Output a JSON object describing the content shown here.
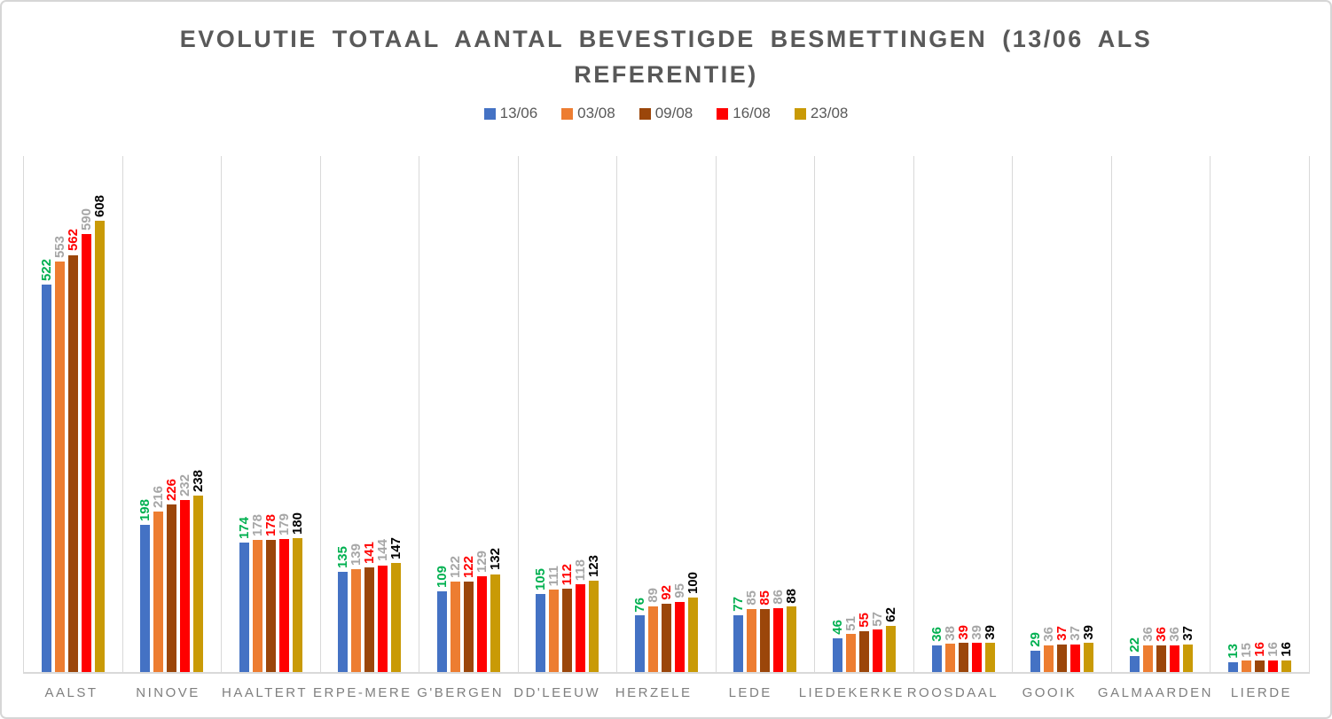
{
  "window": {
    "background": "#FFFFFF",
    "border_color": "#D6D6D6"
  },
  "title": {
    "line1": "EVOLUTIE TOTAAL AANTAL BEVESTIGDE BESMETTINGEN (13/06 ALS",
    "line2": "REFERENTIE)",
    "color": "#595959"
  },
  "chart_data": {
    "type": "bar",
    "title": "EVOLUTIE TOTAAL AANTAL BEVESTIGDE BESMETTINGEN (13/06 ALS REFERENTIE)",
    "xlabel": "",
    "ylabel": "",
    "ylim": [
      0,
      700
    ],
    "grid": "vertical category separators only, no horizontal gridlines, no y-axis",
    "legend_position": "top-center",
    "bar_value_labels": "rotated 90 degrees, placed above each bar",
    "categories": [
      "AALST",
      "NINOVE",
      "HAALTERT",
      "ERPE-MERE",
      "G'BERGEN",
      "DD'LEEUW",
      "HERZELE",
      "LEDE",
      "LIEDEKERKE",
      "ROOSDAAL",
      "GOOIK",
      "GALMAARDEN",
      "LIERDE"
    ],
    "series": [
      {
        "name": "13/06",
        "color": "#4472C4",
        "label_color": "#00B050",
        "values": [
          522,
          198,
          174,
          135,
          109,
          105,
          76,
          77,
          46,
          36,
          29,
          22,
          13
        ]
      },
      {
        "name": "03/08",
        "color": "#ED7D31",
        "label_color": "#A6A6A6",
        "values": [
          553,
          216,
          178,
          139,
          122,
          111,
          89,
          85,
          51,
          38,
          36,
          36,
          15
        ]
      },
      {
        "name": "09/08",
        "color": "#9B460A",
        "label_color": "#FF0000",
        "values": [
          562,
          226,
          178,
          141,
          122,
          112,
          92,
          85,
          55,
          39,
          37,
          36,
          16
        ]
      },
      {
        "name": "16/08",
        "color": "#FF0000",
        "label_color": "#A6A6A6",
        "values": [
          590,
          232,
          179,
          144,
          129,
          118,
          95,
          86,
          57,
          39,
          37,
          36,
          16
        ]
      },
      {
        "name": "23/08",
        "color": "#C99A06",
        "label_color": "#000000",
        "values": [
          608,
          238,
          180,
          147,
          132,
          123,
          100,
          88,
          62,
          39,
          39,
          37,
          16
        ]
      }
    ]
  },
  "styles": {
    "grid_color": "#D9D9D9",
    "axis_line_color": "#D9D9D9",
    "category_label_color": "#7F7F7F",
    "legend_text_color": "#595959",
    "title_color": "#595959"
  }
}
